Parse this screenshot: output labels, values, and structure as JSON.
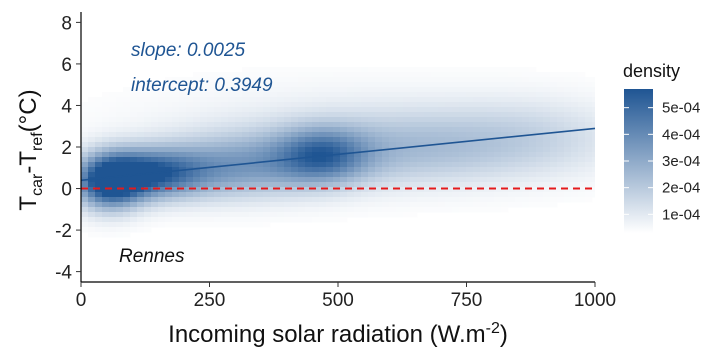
{
  "chart_data": {
    "type": "heatmap",
    "subtype": "2d-density with linear fit",
    "xlabel_main": "Incoming solar radiation (W.m",
    "xlabel_sup": "-2",
    "xlabel_end": ")",
    "ylabel": {
      "T1": "T",
      "sub1": "car",
      "dash": "-",
      "T2": "T",
      "sub2": "ref",
      "unit": "(°C)"
    },
    "xlim": [
      0,
      1000
    ],
    "ylim": [
      -4.5,
      8.5
    ],
    "x_ticks": [
      0,
      250,
      500,
      750,
      1000
    ],
    "x_tick_labels": [
      "0",
      "250",
      "500",
      "750",
      "1000"
    ],
    "y_ticks": [
      -4,
      -2,
      0,
      2,
      4,
      6,
      8
    ],
    "y_tick_labels": [
      "-4",
      "-2",
      "0",
      "2",
      "4",
      "6",
      "8"
    ],
    "fit_line": {
      "slope": 0.0025,
      "intercept": 0.3949,
      "color": "#1f5593"
    },
    "reference_line": {
      "y": 0,
      "style": "dashed",
      "color": "#e41a1c"
    },
    "annotations": {
      "slope": "slope: 0.0025",
      "intercept": "intercept: 0.3949",
      "location": "Rennes"
    },
    "annotation_color": "#1f5593",
    "legend": {
      "title": "density",
      "placement": "right",
      "labels": [
        "5e-04",
        "4e-04",
        "3e-04",
        "2e-04",
        "1e-04"
      ],
      "values": [
        0.0005,
        0.0004,
        0.0003,
        0.0002,
        0.0001
      ],
      "color_low": "#ffffff",
      "color_high": "#1f5593"
    },
    "density_blobs": [
      {
        "x": 55,
        "y": 0.3,
        "sx": 45,
        "sy": 0.9,
        "w": 1.0
      },
      {
        "x": 130,
        "y": 0.7,
        "sx": 70,
        "sy": 0.8,
        "w": 0.75
      },
      {
        "x": 250,
        "y": 0.9,
        "sx": 110,
        "sy": 1.0,
        "w": 0.35
      },
      {
        "x": 470,
        "y": 1.6,
        "sx": 60,
        "sy": 0.9,
        "w": 0.55
      },
      {
        "x": 380,
        "y": 1.3,
        "sx": 120,
        "sy": 1.1,
        "w": 0.3
      },
      {
        "x": 640,
        "y": 1.9,
        "sx": 140,
        "sy": 1.2,
        "w": 0.28
      },
      {
        "x": 880,
        "y": 2.4,
        "sx": 130,
        "sy": 1.3,
        "w": 0.2
      },
      {
        "x": 500,
        "y": 2.8,
        "sx": 280,
        "sy": 1.6,
        "w": 0.1
      }
    ]
  }
}
